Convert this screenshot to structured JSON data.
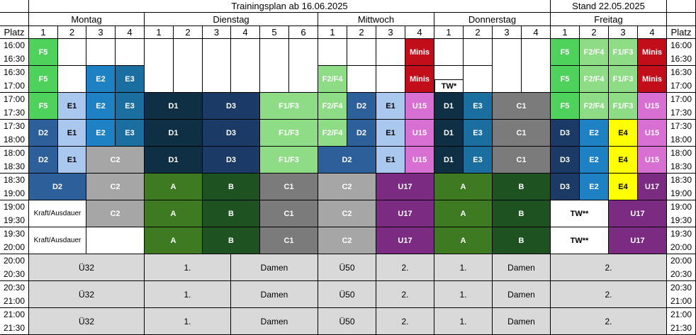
{
  "title": "Trainingsplan ab 16.06.2025",
  "stand": "Stand 22.05.2025",
  "platz_label": "Platz",
  "days": [
    {
      "name": "Montag",
      "courts": [
        "1",
        "2",
        "3",
        "4"
      ]
    },
    {
      "name": "Dienstag",
      "courts": [
        "1",
        "2",
        "3",
        "4",
        "5",
        "6"
      ]
    },
    {
      "name": "Mittwoch",
      "courts": [
        "1",
        "2",
        "3",
        "4"
      ]
    },
    {
      "name": "Donnerstag",
      "courts": [
        "1",
        "2",
        "3",
        "4"
      ]
    },
    {
      "name": "Freitag",
      "courts": [
        "1",
        "2",
        "3",
        "4"
      ]
    }
  ],
  "time_rows": [
    [
      "16:00",
      "16:30"
    ],
    [
      "16:30",
      "17:00"
    ],
    [
      "17:00",
      "17:30"
    ],
    [
      "17:30",
      "18:00"
    ],
    [
      "18:00",
      "18:30"
    ],
    [
      "18:30",
      "19:00"
    ],
    [
      "19:00",
      "19:30"
    ],
    [
      "19:30",
      "20:00"
    ],
    [
      "20:00",
      "20:30"
    ],
    [
      "20:30",
      "21:00"
    ],
    [
      "21:00",
      "21:30"
    ]
  ],
  "colors": {
    "white": "#ffffff",
    "green_f5": "#4fd25c",
    "light_green": "#8fdc87",
    "light_blue": "#aac8ee",
    "mid_blue": "#1e81c4",
    "teal_blue": "#1b6fa0",
    "navy_d1": "#0f2f44",
    "navy_d3": "#1b3a66",
    "d2_blue": "#2d5f9b",
    "grey_c2": "#a6a6a6",
    "grey_c1": "#7b7b7b",
    "grey_row": "#d9d9d9",
    "forest_a": "#3d7a22",
    "dark_green_b": "#1f5221",
    "purple_u17": "#7b2c82",
    "pink_u15": "#d86fd2",
    "red_minis": "#c20e1a",
    "yellow_e4": "#ffff00"
  },
  "cells": [
    {
      "c": 0,
      "r": 0,
      "cs": 1,
      "rs": 1,
      "t": "F5",
      "col": "green_f5"
    },
    {
      "c": 1,
      "r": 0,
      "cs": 1,
      "rs": 1,
      "t": "",
      "col": "white"
    },
    {
      "c": 2,
      "r": 0,
      "cs": 1,
      "rs": 1,
      "t": "",
      "col": "white"
    },
    {
      "c": 3,
      "r": 0,
      "cs": 1,
      "rs": 1,
      "t": "",
      "col": "white"
    },
    {
      "c": 4,
      "r": 0,
      "cs": 1,
      "rs": 2,
      "t": "",
      "col": "white"
    },
    {
      "c": 5,
      "r": 0,
      "cs": 1,
      "rs": 2,
      "t": "",
      "col": "white"
    },
    {
      "c": 6,
      "r": 0,
      "cs": 1,
      "rs": 2,
      "t": "",
      "col": "white"
    },
    {
      "c": 7,
      "r": 0,
      "cs": 1,
      "rs": 2,
      "t": "",
      "col": "white"
    },
    {
      "c": 8,
      "r": 0,
      "cs": 1,
      "rs": 2,
      "t": "",
      "col": "white"
    },
    {
      "c": 9,
      "r": 0,
      "cs": 1,
      "rs": 2,
      "t": "",
      "col": "white"
    },
    {
      "c": 10,
      "r": 0,
      "cs": 1,
      "rs": 1,
      "t": "",
      "col": "white"
    },
    {
      "c": 11,
      "r": 0,
      "cs": 1,
      "rs": 1,
      "t": "",
      "col": "white"
    },
    {
      "c": 12,
      "r": 0,
      "cs": 1,
      "rs": 1,
      "t": "",
      "col": "white"
    },
    {
      "c": 13,
      "r": 0,
      "cs": 1,
      "rs": 1,
      "t": "Minis",
      "col": "red_minis"
    },
    {
      "c": 14,
      "r": 0,
      "cs": 1,
      "rs": 1,
      "t": "",
      "col": "white"
    },
    {
      "c": 15,
      "r": 0,
      "cs": 1,
      "rs": 1,
      "t": "",
      "col": "white"
    },
    {
      "c": 16,
      "r": 0,
      "cs": 1,
      "rs": 2,
      "t": "",
      "col": "white"
    },
    {
      "c": 17,
      "r": 0,
      "cs": 1,
      "rs": 2,
      "t": "",
      "col": "white"
    },
    {
      "c": 18,
      "r": 0,
      "cs": 1,
      "rs": 1,
      "t": "F5",
      "col": "green_f5"
    },
    {
      "c": 19,
      "r": 0,
      "cs": 1,
      "rs": 1,
      "t": "F2/F4",
      "col": "light_green"
    },
    {
      "c": 20,
      "r": 0,
      "cs": 1,
      "rs": 1,
      "t": "F1/F3",
      "col": "light_green"
    },
    {
      "c": 21,
      "r": 0,
      "cs": 1,
      "rs": 1,
      "t": "Minis",
      "col": "red_minis"
    },
    {
      "c": 0,
      "r": 1,
      "cs": 1,
      "rs": 1,
      "t": "F5",
      "col": "green_f5"
    },
    {
      "c": 1,
      "r": 1,
      "cs": 1,
      "rs": 1,
      "t": "",
      "col": "white"
    },
    {
      "c": 2,
      "r": 1,
      "cs": 1,
      "rs": 1,
      "t": "E2",
      "col": "mid_blue"
    },
    {
      "c": 3,
      "r": 1,
      "cs": 1,
      "rs": 1,
      "t": "E3",
      "col": "teal_blue"
    },
    {
      "c": 10,
      "r": 1,
      "cs": 1,
      "rs": 1,
      "t": "F2/F4",
      "col": "light_green"
    },
    {
      "c": 11,
      "r": 1,
      "cs": 1,
      "rs": 1,
      "t": "",
      "col": "white"
    },
    {
      "c": 12,
      "r": 1,
      "cs": 1,
      "rs": 1,
      "t": "",
      "col": "white"
    },
    {
      "c": 13,
      "r": 1,
      "cs": 1,
      "rs": 1,
      "t": "Minis",
      "col": "red_minis"
    },
    {
      "c": 14,
      "r": 1,
      "cs": 1,
      "rs": 1,
      "t": "",
      "col": "white"
    },
    {
      "c": 15,
      "r": 1,
      "cs": 1,
      "rs": 1,
      "t": "",
      "col": "white"
    },
    {
      "c": 18,
      "r": 1,
      "cs": 1,
      "rs": 1,
      "t": "F5",
      "col": "green_f5"
    },
    {
      "c": 19,
      "r": 1,
      "cs": 1,
      "rs": 1,
      "t": "F2/F4",
      "col": "light_green"
    },
    {
      "c": 20,
      "r": 1,
      "cs": 1,
      "rs": 1,
      "t": "F1/F3",
      "col": "light_green"
    },
    {
      "c": 21,
      "r": 1,
      "cs": 1,
      "rs": 1,
      "t": "Minis",
      "col": "red_minis"
    },
    {
      "c": 0,
      "r": 2,
      "cs": 1,
      "rs": 1,
      "t": "F5",
      "col": "green_f5"
    },
    {
      "c": 1,
      "r": 2,
      "cs": 1,
      "rs": 1,
      "t": "E1",
      "col": "light_blue"
    },
    {
      "c": 2,
      "r": 2,
      "cs": 1,
      "rs": 1,
      "t": "E2",
      "col": "mid_blue"
    },
    {
      "c": 3,
      "r": 2,
      "cs": 1,
      "rs": 1,
      "t": "E3",
      "col": "teal_blue"
    },
    {
      "c": 4,
      "r": 2,
      "cs": 2,
      "rs": 1,
      "t": "D1",
      "col": "navy_d1"
    },
    {
      "c": 6,
      "r": 2,
      "cs": 2,
      "rs": 1,
      "t": "D3",
      "col": "navy_d3"
    },
    {
      "c": 8,
      "r": 2,
      "cs": 2,
      "rs": 1,
      "t": "F1/F3",
      "col": "light_green"
    },
    {
      "c": 10,
      "r": 2,
      "cs": 1,
      "rs": 1,
      "t": "F2/F4",
      "col": "light_green"
    },
    {
      "c": 11,
      "r": 2,
      "cs": 1,
      "rs": 1,
      "t": "D2",
      "col": "d2_blue"
    },
    {
      "c": 12,
      "r": 2,
      "cs": 1,
      "rs": 1,
      "t": "E1",
      "col": "light_blue"
    },
    {
      "c": 13,
      "r": 2,
      "cs": 1,
      "rs": 1,
      "t": "U15",
      "col": "pink_u15"
    },
    {
      "c": 14,
      "r": 2,
      "cs": 1,
      "rs": 1,
      "t": "D1",
      "col": "navy_d1"
    },
    {
      "c": 15,
      "r": 2,
      "cs": 1,
      "rs": 1,
      "t": "E3",
      "col": "teal_blue"
    },
    {
      "c": 16,
      "r": 2,
      "cs": 2,
      "rs": 1,
      "t": "C1",
      "col": "grey_c1"
    },
    {
      "c": 18,
      "r": 2,
      "cs": 1,
      "rs": 1,
      "t": "F5",
      "col": "green_f5"
    },
    {
      "c": 19,
      "r": 2,
      "cs": 1,
      "rs": 1,
      "t": "F2/F4",
      "col": "light_green"
    },
    {
      "c": 20,
      "r": 2,
      "cs": 1,
      "rs": 1,
      "t": "F1/F3",
      "col": "light_green"
    },
    {
      "c": 21,
      "r": 2,
      "cs": 1,
      "rs": 1,
      "t": "U15",
      "col": "pink_u15"
    },
    {
      "c": 0,
      "r": 3,
      "cs": 1,
      "rs": 1,
      "t": "D2",
      "col": "d2_blue"
    },
    {
      "c": 1,
      "r": 3,
      "cs": 1,
      "rs": 1,
      "t": "E1",
      "col": "light_blue"
    },
    {
      "c": 2,
      "r": 3,
      "cs": 1,
      "rs": 1,
      "t": "E2",
      "col": "mid_blue"
    },
    {
      "c": 3,
      "r": 3,
      "cs": 1,
      "rs": 1,
      "t": "E3",
      "col": "teal_blue"
    },
    {
      "c": 4,
      "r": 3,
      "cs": 2,
      "rs": 1,
      "t": "D1",
      "col": "navy_d1"
    },
    {
      "c": 6,
      "r": 3,
      "cs": 2,
      "rs": 1,
      "t": "D3",
      "col": "navy_d3"
    },
    {
      "c": 8,
      "r": 3,
      "cs": 2,
      "rs": 1,
      "t": "F1/F3",
      "col": "light_green"
    },
    {
      "c": 10,
      "r": 3,
      "cs": 1,
      "rs": 1,
      "t": "F2/F4",
      "col": "light_green"
    },
    {
      "c": 11,
      "r": 3,
      "cs": 1,
      "rs": 1,
      "t": "D2",
      "col": "d2_blue"
    },
    {
      "c": 12,
      "r": 3,
      "cs": 1,
      "rs": 1,
      "t": "E1",
      "col": "light_blue"
    },
    {
      "c": 13,
      "r": 3,
      "cs": 1,
      "rs": 1,
      "t": "U15",
      "col": "pink_u15"
    },
    {
      "c": 14,
      "r": 3,
      "cs": 1,
      "rs": 1,
      "t": "D1",
      "col": "navy_d1"
    },
    {
      "c": 15,
      "r": 3,
      "cs": 1,
      "rs": 1,
      "t": "E3",
      "col": "teal_blue"
    },
    {
      "c": 16,
      "r": 3,
      "cs": 2,
      "rs": 1,
      "t": "C1",
      "col": "grey_c1"
    },
    {
      "c": 18,
      "r": 3,
      "cs": 1,
      "rs": 1,
      "t": "D3",
      "col": "navy_d3"
    },
    {
      "c": 19,
      "r": 3,
      "cs": 1,
      "rs": 1,
      "t": "E2",
      "col": "mid_blue"
    },
    {
      "c": 20,
      "r": 3,
      "cs": 1,
      "rs": 1,
      "t": "E4",
      "col": "yellow_e4"
    },
    {
      "c": 21,
      "r": 3,
      "cs": 1,
      "rs": 1,
      "t": "U15",
      "col": "pink_u15"
    },
    {
      "c": 0,
      "r": 4,
      "cs": 1,
      "rs": 1,
      "t": "D2",
      "col": "d2_blue"
    },
    {
      "c": 1,
      "r": 4,
      "cs": 1,
      "rs": 1,
      "t": "E1",
      "col": "light_blue"
    },
    {
      "c": 2,
      "r": 4,
      "cs": 2,
      "rs": 1,
      "t": "C2",
      "col": "grey_c2"
    },
    {
      "c": 4,
      "r": 4,
      "cs": 2,
      "rs": 1,
      "t": "D1",
      "col": "navy_d1"
    },
    {
      "c": 6,
      "r": 4,
      "cs": 2,
      "rs": 1,
      "t": "D3",
      "col": "navy_d3"
    },
    {
      "c": 8,
      "r": 4,
      "cs": 2,
      "rs": 1,
      "t": "F1/F3",
      "col": "light_green"
    },
    {
      "c": 10,
      "r": 4,
      "cs": 2,
      "rs": 1,
      "t": "D2",
      "col": "d2_blue"
    },
    {
      "c": 12,
      "r": 4,
      "cs": 1,
      "rs": 1,
      "t": "E1",
      "col": "light_blue"
    },
    {
      "c": 13,
      "r": 4,
      "cs": 1,
      "rs": 1,
      "t": "U15",
      "col": "pink_u15"
    },
    {
      "c": 14,
      "r": 4,
      "cs": 1,
      "rs": 1,
      "t": "D1",
      "col": "navy_d1"
    },
    {
      "c": 15,
      "r": 4,
      "cs": 1,
      "rs": 1,
      "t": "E3",
      "col": "teal_blue"
    },
    {
      "c": 16,
      "r": 4,
      "cs": 2,
      "rs": 1,
      "t": "C1",
      "col": "grey_c1"
    },
    {
      "c": 18,
      "r": 4,
      "cs": 1,
      "rs": 1,
      "t": "D3",
      "col": "navy_d3"
    },
    {
      "c": 19,
      "r": 4,
      "cs": 1,
      "rs": 1,
      "t": "E2",
      "col": "mid_blue"
    },
    {
      "c": 20,
      "r": 4,
      "cs": 1,
      "rs": 1,
      "t": "E4",
      "col": "yellow_e4"
    },
    {
      "c": 21,
      "r": 4,
      "cs": 1,
      "rs": 1,
      "t": "U15",
      "col": "pink_u15"
    },
    {
      "c": 0,
      "r": 5,
      "cs": 2,
      "rs": 1,
      "t": "D2",
      "col": "d2_blue"
    },
    {
      "c": 2,
      "r": 5,
      "cs": 2,
      "rs": 1,
      "t": "C2",
      "col": "grey_c2"
    },
    {
      "c": 4,
      "r": 5,
      "cs": 2,
      "rs": 1,
      "t": "A",
      "col": "forest_a"
    },
    {
      "c": 6,
      "r": 5,
      "cs": 2,
      "rs": 1,
      "t": "B",
      "col": "dark_green_b"
    },
    {
      "c": 8,
      "r": 5,
      "cs": 2,
      "rs": 1,
      "t": "C1",
      "col": "grey_c1"
    },
    {
      "c": 10,
      "r": 5,
      "cs": 2,
      "rs": 1,
      "t": "C2",
      "col": "grey_c2"
    },
    {
      "c": 12,
      "r": 5,
      "cs": 2,
      "rs": 1,
      "t": "U17",
      "col": "purple_u17"
    },
    {
      "c": 14,
      "r": 5,
      "cs": 2,
      "rs": 1,
      "t": "A",
      "col": "forest_a"
    },
    {
      "c": 16,
      "r": 5,
      "cs": 2,
      "rs": 1,
      "t": "B",
      "col": "dark_green_b"
    },
    {
      "c": 18,
      "r": 5,
      "cs": 1,
      "rs": 1,
      "t": "D3",
      "col": "navy_d3"
    },
    {
      "c": 19,
      "r": 5,
      "cs": 1,
      "rs": 1,
      "t": "E2",
      "col": "mid_blue"
    },
    {
      "c": 20,
      "r": 5,
      "cs": 1,
      "rs": 1,
      "t": "E4",
      "col": "yellow_e4"
    },
    {
      "c": 21,
      "r": 5,
      "cs": 1,
      "rs": 1,
      "t": "U17",
      "col": "purple_u17"
    },
    {
      "c": 0,
      "r": 6,
      "cs": 2,
      "rs": 1,
      "t": "Kraft/Ausdauer",
      "col": "white"
    },
    {
      "c": 2,
      "r": 6,
      "cs": 2,
      "rs": 1,
      "t": "C2",
      "col": "grey_c2"
    },
    {
      "c": 4,
      "r": 6,
      "cs": 2,
      "rs": 1,
      "t": "A",
      "col": "forest_a"
    },
    {
      "c": 6,
      "r": 6,
      "cs": 2,
      "rs": 1,
      "t": "B",
      "col": "dark_green_b"
    },
    {
      "c": 8,
      "r": 6,
      "cs": 2,
      "rs": 1,
      "t": "C1",
      "col": "grey_c1"
    },
    {
      "c": 10,
      "r": 6,
      "cs": 2,
      "rs": 1,
      "t": "C2",
      "col": "grey_c2"
    },
    {
      "c": 12,
      "r": 6,
      "cs": 2,
      "rs": 1,
      "t": "U17",
      "col": "purple_u17"
    },
    {
      "c": 14,
      "r": 6,
      "cs": 2,
      "rs": 1,
      "t": "A",
      "col": "forest_a"
    },
    {
      "c": 16,
      "r": 6,
      "cs": 2,
      "rs": 1,
      "t": "B",
      "col": "dark_green_b"
    },
    {
      "c": 18,
      "r": 6,
      "cs": 2,
      "rs": 1,
      "t": "TW**",
      "col": "white"
    },
    {
      "c": 20,
      "r": 6,
      "cs": 2,
      "rs": 1,
      "t": "U17",
      "col": "purple_u17"
    },
    {
      "c": 0,
      "r": 7,
      "cs": 2,
      "rs": 1,
      "t": "Kraft/Ausdauer",
      "col": "white"
    },
    {
      "c": 2,
      "r": 7,
      "cs": 2,
      "rs": 1,
      "t": "",
      "col": "white"
    },
    {
      "c": 4,
      "r": 7,
      "cs": 2,
      "rs": 1,
      "t": "A",
      "col": "forest_a"
    },
    {
      "c": 6,
      "r": 7,
      "cs": 2,
      "rs": 1,
      "t": "B",
      "col": "dark_green_b"
    },
    {
      "c": 8,
      "r": 7,
      "cs": 2,
      "rs": 1,
      "t": "C1",
      "col": "grey_c1"
    },
    {
      "c": 10,
      "r": 7,
      "cs": 2,
      "rs": 1,
      "t": "C2",
      "col": "grey_c2"
    },
    {
      "c": 12,
      "r": 7,
      "cs": 2,
      "rs": 1,
      "t": "U17",
      "col": "purple_u17"
    },
    {
      "c": 14,
      "r": 7,
      "cs": 2,
      "rs": 1,
      "t": "A",
      "col": "forest_a"
    },
    {
      "c": 16,
      "r": 7,
      "cs": 2,
      "rs": 1,
      "t": "B",
      "col": "dark_green_b"
    },
    {
      "c": 18,
      "r": 7,
      "cs": 2,
      "rs": 1,
      "t": "TW**",
      "col": "white"
    },
    {
      "c": 20,
      "r": 7,
      "cs": 2,
      "rs": 1,
      "t": "U17",
      "col": "purple_u17"
    }
  ],
  "tw_note": {
    "text": "TW*",
    "c": 14
  },
  "evening_rows": [
    [
      "Ü32",
      "1.",
      "Damen",
      "Ü50",
      "2.",
      "1.",
      "Damen",
      "2."
    ],
    [
      "Ü32",
      "1.",
      "Damen",
      "Ü50",
      "2.",
      "1.",
      "Damen",
      "2."
    ],
    [
      "Ü32",
      "1.",
      "Damen",
      "Ü50",
      "2.",
      "1.",
      "Damen",
      "2."
    ]
  ]
}
